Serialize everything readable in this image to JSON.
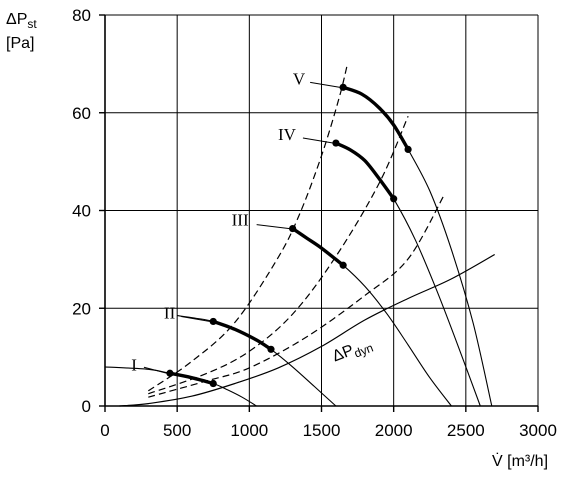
{
  "chart_data": {
    "type": "line",
    "ylabel_main": "ΔP",
    "ylabel_sub": "st",
    "ylabel_unit": "[Pa]",
    "xlabel": "V̇ [m³/h]",
    "xlim": [
      0,
      3000
    ],
    "ylim": [
      0,
      80
    ],
    "xticks": [
      0,
      500,
      1000,
      1500,
      2000,
      2500,
      3000
    ],
    "yticks": [
      0,
      20,
      40,
      60,
      80
    ],
    "grid": true,
    "fan_curves": [
      {
        "name": "I",
        "points": [
          [
            0,
            8
          ],
          [
            300,
            7.5
          ],
          [
            450,
            6.7
          ],
          [
            600,
            5.8
          ],
          [
            750,
            4.6
          ],
          [
            850,
            3.3
          ],
          [
            950,
            1.8
          ],
          [
            1050,
            0
          ]
        ],
        "operating_range": [
          [
            450,
            6.7
          ],
          [
            750,
            4.6
          ]
        ]
      },
      {
        "name": "II",
        "points": [
          [
            500,
            18.5
          ],
          [
            620,
            18
          ],
          [
            750,
            17.3
          ],
          [
            900,
            15.7
          ],
          [
            1050,
            13.5
          ],
          [
            1150,
            11.6
          ],
          [
            1300,
            8
          ],
          [
            1450,
            4
          ],
          [
            1600,
            0
          ]
        ],
        "operating_range": [
          [
            750,
            17.3
          ],
          [
            1150,
            11.6
          ]
        ]
      },
      {
        "name": "III",
        "points": [
          [
            1300,
            36.3
          ],
          [
            1400,
            34.3
          ],
          [
            1500,
            32.3
          ],
          [
            1650,
            28.8
          ],
          [
            1800,
            24.5
          ],
          [
            1950,
            19
          ],
          [
            2100,
            12.5
          ],
          [
            2250,
            5.8
          ],
          [
            2400,
            0
          ]
        ],
        "operating_range": [
          [
            1300,
            36.3
          ],
          [
            1650,
            28.8
          ]
        ]
      },
      {
        "name": "IV",
        "points": [
          [
            1600,
            53.8
          ],
          [
            1700,
            52.4
          ],
          [
            1800,
            50.2
          ],
          [
            1900,
            46.5
          ],
          [
            2000,
            42.4
          ],
          [
            2150,
            34
          ],
          [
            2300,
            23.5
          ],
          [
            2450,
            12
          ],
          [
            2600,
            0
          ]
        ],
        "operating_range": [
          [
            1600,
            53.8
          ],
          [
            2000,
            42.4
          ]
        ]
      },
      {
        "name": "V",
        "points": [
          [
            1650,
            65.2
          ],
          [
            1780,
            63.8
          ],
          [
            1900,
            61
          ],
          [
            2000,
            57.5
          ],
          [
            2100,
            52.5
          ],
          [
            2250,
            44
          ],
          [
            2400,
            32
          ],
          [
            2550,
            17
          ],
          [
            2680,
            0
          ]
        ],
        "operating_range": [
          [
            1650,
            65.2
          ],
          [
            2100,
            52.5
          ]
        ]
      }
    ],
    "system_curves": [
      {
        "points": [
          [
            300,
            3.1
          ],
          [
            600,
            9.1
          ],
          [
            900,
            17.1
          ],
          [
            1200,
            30.4
          ],
          [
            1350,
            39.4
          ],
          [
            1500,
            51.2
          ],
          [
            1620,
            62.8
          ],
          [
            1680,
            70
          ]
        ]
      },
      {
        "points": [
          [
            300,
            2.5
          ],
          [
            700,
            6.6
          ],
          [
            1000,
            11.2
          ],
          [
            1300,
            18.8
          ],
          [
            1600,
            30.6
          ],
          [
            1900,
            45.6
          ],
          [
            2100,
            59.3
          ]
        ]
      },
      {
        "points": [
          [
            300,
            1.8
          ],
          [
            700,
            5.1
          ],
          [
            1000,
            7.8
          ],
          [
            1400,
            14.2
          ],
          [
            1800,
            22.6
          ],
          [
            2100,
            30.1
          ],
          [
            2350,
            43.2
          ]
        ]
      }
    ],
    "dynamic_pressure_curve": {
      "label_main": "ΔP",
      "label_sub": "dyn",
      "points": [
        [
          100,
          0
        ],
        [
          300,
          0.5
        ],
        [
          600,
          2
        ],
        [
          900,
          4.6
        ],
        [
          1200,
          7.8
        ],
        [
          1500,
          12.2
        ],
        [
          1800,
          17.6
        ],
        [
          2100,
          22
        ],
        [
          2400,
          26
        ],
        [
          2700,
          31
        ]
      ]
    }
  }
}
